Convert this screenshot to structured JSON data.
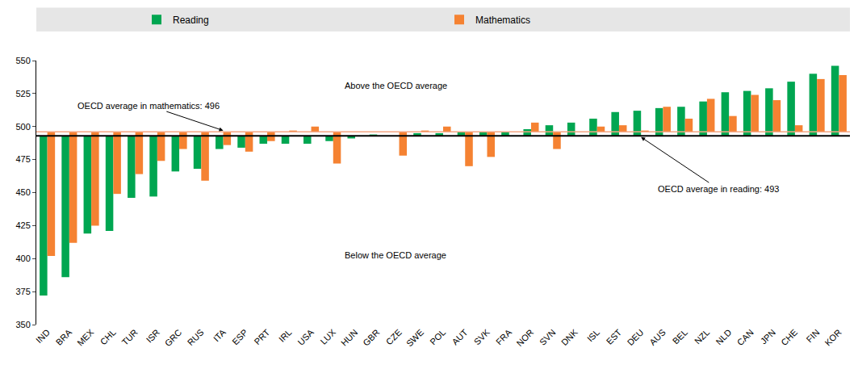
{
  "chart_data": {
    "type": "bar",
    "categories": [
      "IND",
      "BRA",
      "MEX",
      "CHL",
      "TUR",
      "ISR",
      "GRC",
      "RUS",
      "ITA",
      "ESP",
      "PRT",
      "IRL",
      "USA",
      "LUX",
      "HUN",
      "GBR",
      "CZE",
      "SWE",
      "POL",
      "AUT",
      "SVK",
      "FRA",
      "NOR",
      "SVN",
      "DNK",
      "ISL",
      "EST",
      "DEU",
      "AUS",
      "BEL",
      "NZL",
      "NLD",
      "CAN",
      "JPN",
      "CHE",
      "FIN",
      "KOR"
    ],
    "series": [
      {
        "name": "Reading",
        "color": "#00a651",
        "baseline": 493,
        "values": [
          372,
          386,
          419,
          421,
          446,
          447,
          466,
          468,
          483,
          484,
          487,
          487,
          487,
          489,
          491,
          494,
          493,
          495,
          495,
          496,
          496,
          496,
          498,
          501,
          503,
          506,
          511,
          512,
          514,
          515,
          519,
          526,
          527,
          529,
          534,
          540,
          546
        ]
      },
      {
        "name": "Mathematics",
        "color": "#f58232",
        "baseline": 496,
        "values": [
          402,
          412,
          425,
          449,
          464,
          474,
          483,
          459,
          486,
          481,
          489,
          497,
          500,
          472,
          496,
          496,
          478,
          497,
          500,
          470,
          477,
          496,
          503,
          483,
          496,
          500,
          501,
          497,
          515,
          506,
          521,
          508,
          524,
          520,
          501,
          536,
          539
        ]
      }
    ],
    "annotations": [
      "OECD average in mathematics: 496",
      "OECD average in reading: 493",
      "Above the OECD average",
      "Below the OECD average"
    ],
    "ylim": [
      350,
      550
    ],
    "yticks": [
      350,
      375,
      400,
      425,
      450,
      475,
      500,
      525,
      550
    ],
    "grid": false,
    "legend": "top"
  }
}
